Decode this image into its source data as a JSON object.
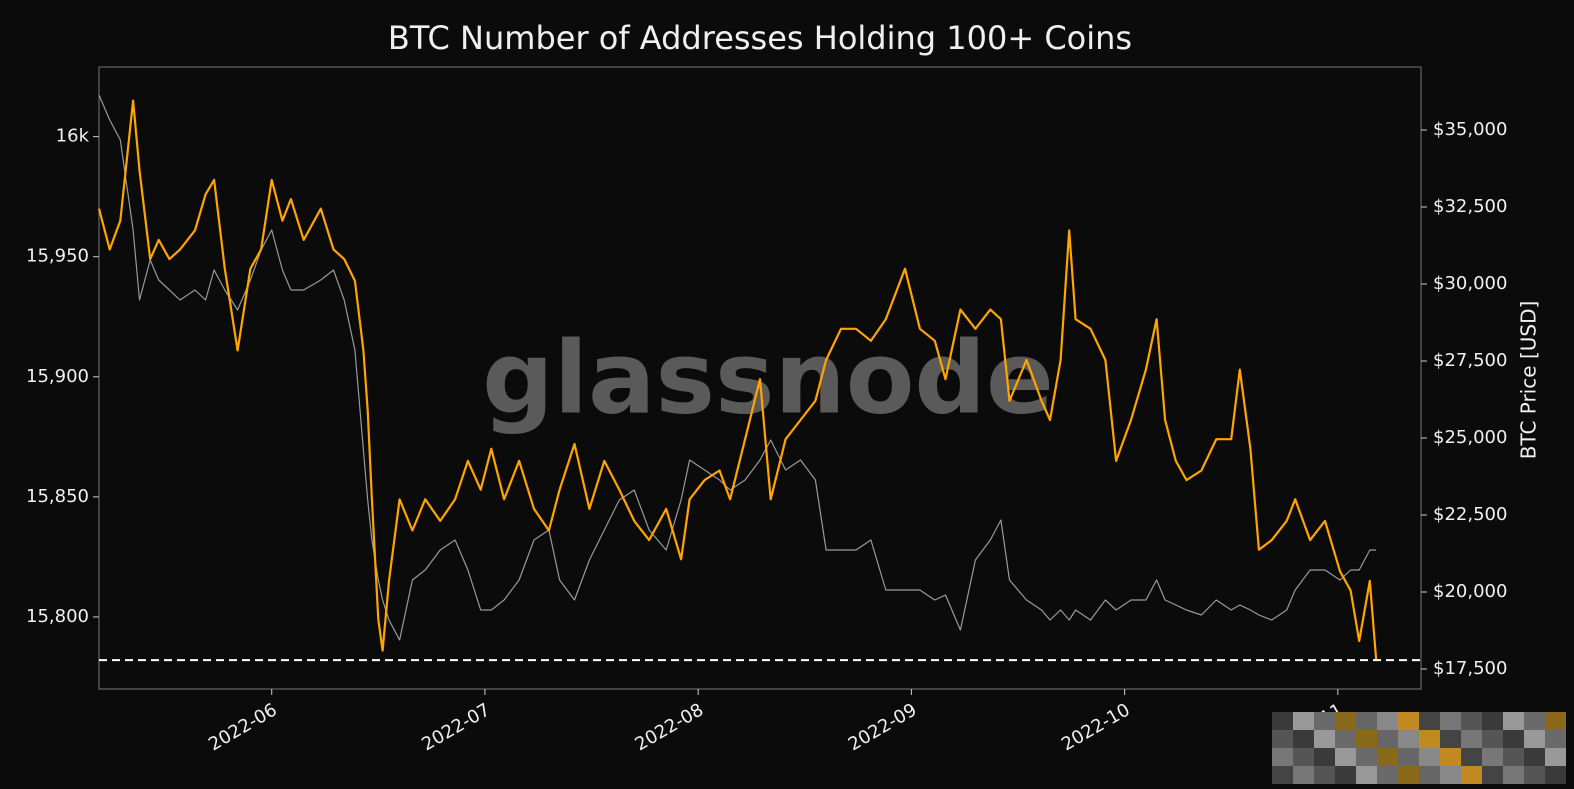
{
  "chart_data": {
    "type": "line",
    "title": "BTC Number of Addresses Holding 100+ Coins",
    "watermark": "glassnode",
    "y2label": "BTC Price [USD]",
    "x": [
      5.19,
      5.24,
      5.29,
      5.35,
      5.38,
      5.43,
      5.47,
      5.52,
      5.57,
      5.64,
      5.69,
      5.73,
      5.78,
      5.84,
      5.9,
      5.95,
      6.0,
      6.05,
      6.09,
      6.15,
      6.23,
      6.29,
      6.34,
      6.39,
      6.43,
      6.45,
      6.47,
      6.5,
      6.52,
      6.55,
      6.6,
      6.66,
      6.72,
      6.79,
      6.86,
      6.92,
      6.98,
      7.03,
      7.09,
      7.16,
      7.23,
      7.3,
      7.35,
      7.42,
      7.49,
      7.56,
      7.63,
      7.7,
      7.77,
      7.85,
      7.92,
      7.96,
      8.03,
      8.1,
      8.15,
      8.22,
      8.29,
      8.34,
      8.41,
      8.48,
      8.55,
      8.6,
      8.67,
      8.74,
      8.81,
      8.88,
      8.97,
      9.04,
      9.11,
      9.16,
      9.23,
      9.3,
      9.37,
      9.42,
      9.46,
      9.54,
      9.61,
      9.65,
      9.7,
      9.74,
      9.77,
      9.84,
      9.91,
      9.96,
      10.03,
      10.1,
      10.15,
      10.19,
      10.24,
      10.29,
      10.36,
      10.43,
      10.5,
      10.54,
      10.59,
      10.63,
      10.69,
      10.76,
      10.8,
      10.87,
      10.94,
      11.01,
      11.06,
      11.1,
      11.15,
      11.18
    ],
    "series": [
      {
        "color": "#999999",
        "axis": "y2",
        "values": [
          36137,
          35326,
          34677,
          31754,
          29480,
          30780,
          30130,
          29806,
          29480,
          29806,
          29480,
          30455,
          29806,
          29156,
          30130,
          31105,
          31754,
          30455,
          29806,
          29806,
          30130,
          30455,
          29480,
          27857,
          24610,
          22988,
          21689,
          20390,
          19741,
          19092,
          18442,
          20390,
          20715,
          21364,
          21689,
          20715,
          19416,
          19416,
          19741,
          20390,
          21689,
          22014,
          20390,
          19741,
          21040,
          22014,
          22988,
          23313,
          22014,
          21364,
          22988,
          24286,
          23962,
          23637,
          23313,
          23637,
          24286,
          24936,
          23962,
          24286,
          23637,
          21364,
          21364,
          21364,
          21689,
          20066,
          20066,
          20066,
          19741,
          19903,
          18767,
          21040,
          21689,
          22338,
          20390,
          19741,
          19416,
          19092,
          19416,
          19092,
          19416,
          19092,
          19741,
          19416,
          19741,
          19741,
          20390,
          19741,
          19579,
          19416,
          19254,
          19741,
          19416,
          19579,
          19416,
          19254,
          19092,
          19416,
          20066,
          20715,
          20715,
          20390,
          20715,
          20715,
          21364,
          21364
        ]
      },
      {
        "color": "#ffa500",
        "values": [
          15970,
          15953,
          15965,
          16015,
          15986,
          15949,
          15957,
          15949,
          15953,
          15961,
          15976,
          15982,
          15945,
          15911,
          15945,
          15953,
          15982,
          15965,
          15974,
          15957,
          15970,
          15953,
          15949,
          15940,
          15911,
          15886,
          15849,
          15799,
          15786,
          15815,
          15849,
          15836,
          15849,
          15840,
          15849,
          15865,
          15853,
          15870,
          15849,
          15865,
          15845,
          15836,
          15853,
          15872,
          15845,
          15865,
          15853,
          15840,
          15832,
          15845,
          15824,
          15849,
          15857,
          15861,
          15849,
          15874,
          15899,
          15849,
          15874,
          15882,
          15890,
          15907,
          15920,
          15920,
          15915,
          15924,
          15945,
          15920,
          15915,
          15899,
          15928,
          15920,
          15928,
          15924,
          15890,
          15907,
          15890,
          15882,
          15907,
          15961,
          15924,
          15920,
          15907,
          15865,
          15882,
          15903,
          15924,
          15882,
          15865,
          15857,
          15861,
          15874,
          15874,
          15903,
          15870,
          15828,
          15832,
          15840,
          15849,
          15832,
          15840,
          15819,
          15811,
          15790,
          15815,
          15782
        ]
      }
    ],
    "hline": 15782,
    "xlim": [
      5.19,
      11.39
    ],
    "xticks": [
      {
        "value": 6,
        "label": "2022-06"
      },
      {
        "value": 7,
        "label": "2022-07"
      },
      {
        "value": 8,
        "label": "2022-08"
      },
      {
        "value": 9,
        "label": "2022-09"
      },
      {
        "value": 10,
        "label": "2022-10"
      },
      {
        "value": 11,
        "label": "2022-11"
      }
    ],
    "ylim": [
      15770,
      16029
    ],
    "yticks": [
      {
        "value": 15800,
        "label": "15,800"
      },
      {
        "value": 15850,
        "label": "15,850"
      },
      {
        "value": 15900,
        "label": "15,900"
      },
      {
        "value": 15950,
        "label": "15,950"
      },
      {
        "value": 16000,
        "label": "16k"
      }
    ],
    "y2lim": [
      16851,
      37045
    ],
    "y2ticks": [
      {
        "value": 17500,
        "label": "$17,500"
      },
      {
        "value": 20000,
        "label": "$20,000"
      },
      {
        "value": 22500,
        "label": "$22,500"
      },
      {
        "value": 25000,
        "label": "$25,000"
      },
      {
        "value": 27500,
        "label": "$27,500"
      },
      {
        "value": 30000,
        "label": "$30,000"
      },
      {
        "value": 32500,
        "label": "$32,500"
      },
      {
        "value": 35000,
        "label": "$35,000"
      }
    ]
  }
}
